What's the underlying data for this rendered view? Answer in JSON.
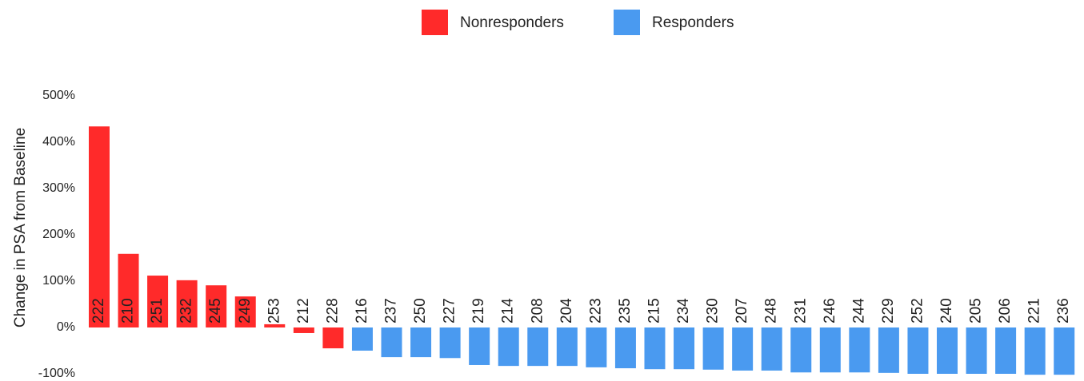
{
  "chart_data": {
    "type": "bar",
    "y_label": "Change in PSA from Baseline",
    "categories": [
      "222",
      "210",
      "251",
      "232",
      "245",
      "249",
      "253",
      "212",
      "228",
      "216",
      "237",
      "250",
      "227",
      "219",
      "214",
      "208",
      "204",
      "223",
      "235",
      "215",
      "234",
      "230",
      "207",
      "248",
      "231",
      "246",
      "244",
      "229",
      "252",
      "240",
      "205",
      "206",
      "221",
      "236"
    ],
    "series": [
      {
        "name": "Nonresponders",
        "color": "#ff2a2a",
        "values": [
          434,
          159,
          112,
          102,
          91,
          67,
          7,
          -12,
          -45,
          null,
          null,
          null,
          null,
          null,
          null,
          null,
          null,
          null,
          null,
          null,
          null,
          null,
          null,
          null,
          null,
          null,
          null,
          null,
          null,
          null,
          null,
          null,
          null,
          null
        ]
      },
      {
        "name": "Responders",
        "color": "#4a9af0",
        "values": [
          null,
          null,
          null,
          null,
          null,
          null,
          null,
          null,
          null,
          -50,
          -64,
          -64,
          -66,
          -81,
          -83,
          -83,
          -83,
          -86,
          -88,
          -90,
          -90,
          -91,
          -93,
          -93,
          -97,
          -97,
          -97,
          -98,
          -100,
          -100,
          -100,
          -100,
          -102,
          -102
        ]
      }
    ],
    "ylim": [
      -100,
      500
    ],
    "yticks": [
      {
        "value": -100,
        "label": "-100%"
      },
      {
        "value": 0,
        "label": "0%"
      },
      {
        "value": 100,
        "label": "100%"
      },
      {
        "value": 200,
        "label": "200%"
      },
      {
        "value": 300,
        "label": "300%"
      },
      {
        "value": 400,
        "label": "400%"
      },
      {
        "value": 500,
        "label": "500%"
      }
    ],
    "legend": "top"
  }
}
